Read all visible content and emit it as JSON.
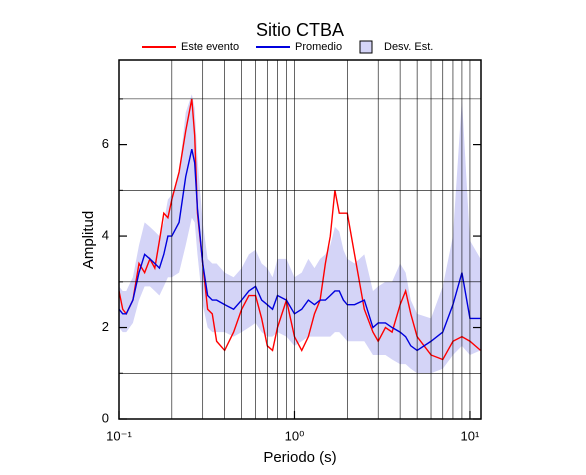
{
  "chart_data": {
    "type": "line",
    "title": "Sitio CTBA",
    "x_label": "Periodo (s)",
    "y_label": "Amplitud",
    "log_x": true,
    "grid": true,
    "xlim": [
      0.1,
      11.56
    ],
    "ylim": [
      0,
      7.85
    ],
    "xticks": [
      {
        "value": 0.1,
        "label": "10⁻¹"
      },
      {
        "value": 1,
        "label": "10⁰"
      },
      {
        "value": 10,
        "label": "10¹"
      }
    ],
    "xminor": [
      0.2,
      0.3,
      0.4,
      0.5,
      0.6,
      0.7,
      0.8,
      0.9,
      2,
      3,
      4,
      5,
      6,
      7,
      8,
      9
    ],
    "yticks": [
      0,
      2,
      4,
      6
    ],
    "yminor": [
      1,
      3,
      5,
      7
    ],
    "x": [
      0.1,
      0.105,
      0.11,
      0.12,
      0.13,
      0.14,
      0.15,
      0.16,
      0.17,
      0.18,
      0.19,
      0.2,
      0.22,
      0.24,
      0.26,
      0.27,
      0.28,
      0.3,
      0.32,
      0.34,
      0.36,
      0.4,
      0.45,
      0.5,
      0.55,
      0.6,
      0.65,
      0.7,
      0.75,
      0.8,
      0.9,
      1.0,
      1.1,
      1.2,
      1.3,
      1.4,
      1.5,
      1.6,
      1.7,
      1.8,
      1.9,
      2.0,
      2.2,
      2.5,
      2.8,
      3.0,
      3.3,
      3.6,
      4.0,
      4.3,
      4.6,
      5.0,
      6.0,
      7.0,
      8.0,
      9.0,
      10.0,
      11.5
    ],
    "series": [
      {
        "name": "Desv. Est.",
        "kind": "band",
        "color": "#d4d4f7",
        "low": [
          2.0,
          1.9,
          1.9,
          2.1,
          2.6,
          2.9,
          2.9,
          2.8,
          2.7,
          2.9,
          3.1,
          3.1,
          3.2,
          3.8,
          4.4,
          4.3,
          3.6,
          2.5,
          2.0,
          1.9,
          1.9,
          1.9,
          1.8,
          1.9,
          2.0,
          2.1,
          1.9,
          1.8,
          1.8,
          1.9,
          1.8,
          1.6,
          1.7,
          1.8,
          1.8,
          1.8,
          1.8,
          1.8,
          1.9,
          1.9,
          1.8,
          1.7,
          1.7,
          1.7,
          1.4,
          1.4,
          1.4,
          1.3,
          1.2,
          1.2,
          1.1,
          1.0,
          1.0,
          1.1,
          1.4,
          1.6,
          1.4,
          1.5
        ],
        "high": [
          2.9,
          2.8,
          2.8,
          3.1,
          3.8,
          4.3,
          4.2,
          4.1,
          4.0,
          4.3,
          4.8,
          4.9,
          5.4,
          6.7,
          7.1,
          6.8,
          5.7,
          4.3,
          3.5,
          3.4,
          3.4,
          3.2,
          3.1,
          3.3,
          3.6,
          3.7,
          3.4,
          3.3,
          3.1,
          3.5,
          3.5,
          3.1,
          3.2,
          3.5,
          3.3,
          3.5,
          3.6,
          3.8,
          4.2,
          4.1,
          3.7,
          3.5,
          3.4,
          3.6,
          2.8,
          2.9,
          3.0,
          3.0,
          3.4,
          3.2,
          2.6,
          2.3,
          2.2,
          2.9,
          4.0,
          7.0,
          3.9,
          3.5
        ]
      },
      {
        "name": "Este evento",
        "color": "#ff0000",
        "values": [
          2.8,
          2.4,
          2.3,
          2.6,
          3.4,
          3.2,
          3.5,
          3.3,
          3.9,
          4.5,
          4.4,
          4.8,
          5.4,
          6.3,
          7.0,
          6.2,
          4.5,
          3.4,
          2.4,
          2.3,
          1.7,
          1.5,
          1.9,
          2.4,
          2.7,
          2.7,
          2.2,
          1.6,
          1.5,
          2.0,
          2.6,
          1.8,
          1.5,
          1.8,
          2.3,
          2.6,
          3.4,
          4.0,
          5.0,
          4.5,
          4.5,
          4.5,
          3.6,
          2.4,
          1.9,
          1.7,
          2.0,
          1.9,
          2.5,
          2.8,
          2.3,
          1.8,
          1.4,
          1.3,
          1.7,
          1.8,
          1.7,
          1.5
        ]
      },
      {
        "name": "Promedio",
        "color": "#0000dd",
        "values": [
          2.4,
          2.3,
          2.3,
          2.6,
          3.2,
          3.6,
          3.5,
          3.4,
          3.3,
          3.6,
          4.0,
          4.0,
          4.3,
          5.3,
          5.9,
          5.6,
          4.6,
          3.4,
          2.7,
          2.6,
          2.6,
          2.5,
          2.4,
          2.6,
          2.8,
          2.9,
          2.6,
          2.5,
          2.4,
          2.7,
          2.6,
          2.3,
          2.4,
          2.6,
          2.5,
          2.6,
          2.6,
          2.7,
          2.8,
          2.8,
          2.6,
          2.5,
          2.5,
          2.6,
          2.0,
          2.1,
          2.1,
          2.0,
          1.9,
          1.8,
          1.6,
          1.5,
          1.7,
          1.9,
          2.5,
          3.2,
          2.2,
          2.2
        ]
      }
    ]
  }
}
